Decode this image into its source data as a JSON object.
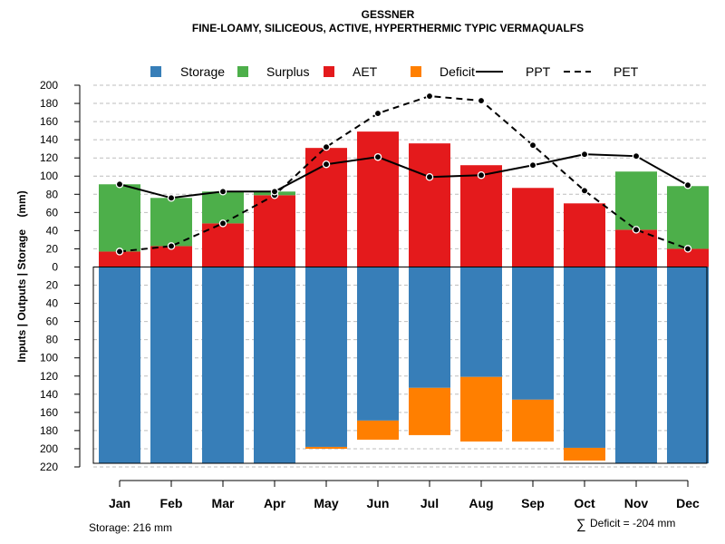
{
  "colors": {
    "storage": "#377EB8",
    "surplus": "#4DAF4A",
    "aet": "#E41A1C",
    "deficit": "#FF7F00",
    "grid": "#BEBEBE",
    "line": "#000000"
  },
  "chart_data": {
    "type": "bar",
    "title": "GESSNER",
    "subtitle": "FINE-LOAMY, SILICEOUS, ACTIVE, HYPERTHERMIC TYPIC VERMAQUALFS",
    "ylabel": "Inputs | Outputs | Storage    (mm)",
    "xlabel": "",
    "ylim": [
      -220,
      200
    ],
    "yticks": [
      200,
      180,
      160,
      140,
      120,
      100,
      80,
      60,
      40,
      20,
      0,
      -20,
      -40,
      -60,
      -80,
      -100,
      -120,
      -140,
      -160,
      -180,
      -200,
      -220
    ],
    "ytick_labels": [
      "200",
      "180",
      "160",
      "140",
      "120",
      "100",
      "80",
      "60",
      "40",
      "20",
      "0",
      "20",
      "40",
      "60",
      "80",
      "100",
      "120",
      "140",
      "160",
      "180",
      "200",
      "220"
    ],
    "grid": true,
    "categories": [
      "Jan",
      "Feb",
      "Mar",
      "Apr",
      "May",
      "Jun",
      "Jul",
      "Aug",
      "Sep",
      "Oct",
      "Nov",
      "Dec"
    ],
    "legend": [
      "Storage",
      "Surplus",
      "AET",
      "Deficit",
      "PPT",
      "PET"
    ],
    "series": [
      {
        "name": "AET",
        "values": [
          17,
          23,
          48,
          79,
          131,
          149,
          136,
          112,
          87,
          70,
          41,
          20
        ]
      },
      {
        "name": "Surplus",
        "values": [
          74,
          53,
          35,
          4,
          0,
          0,
          0,
          0,
          0,
          0,
          64,
          69
        ]
      },
      {
        "name": "Storage",
        "values": [
          216,
          216,
          216,
          216,
          198,
          169,
          133,
          121,
          146,
          199,
          216,
          216
        ]
      },
      {
        "name": "Deficit",
        "values": [
          0,
          0,
          0,
          0,
          2,
          21,
          52,
          71,
          46,
          14,
          0,
          0
        ]
      },
      {
        "name": "PPT",
        "values": [
          91,
          76,
          83,
          83,
          113,
          121,
          99,
          101,
          112,
          124,
          122,
          90
        ]
      },
      {
        "name": "PET",
        "values": [
          17,
          23,
          48,
          79,
          132,
          169,
          188,
          183,
          134,
          84,
          41,
          20
        ]
      }
    ],
    "footer_left": "Storage: 216 mm",
    "footer_right": "Deficit = -204 mm",
    "footer_symbol": "∑"
  }
}
